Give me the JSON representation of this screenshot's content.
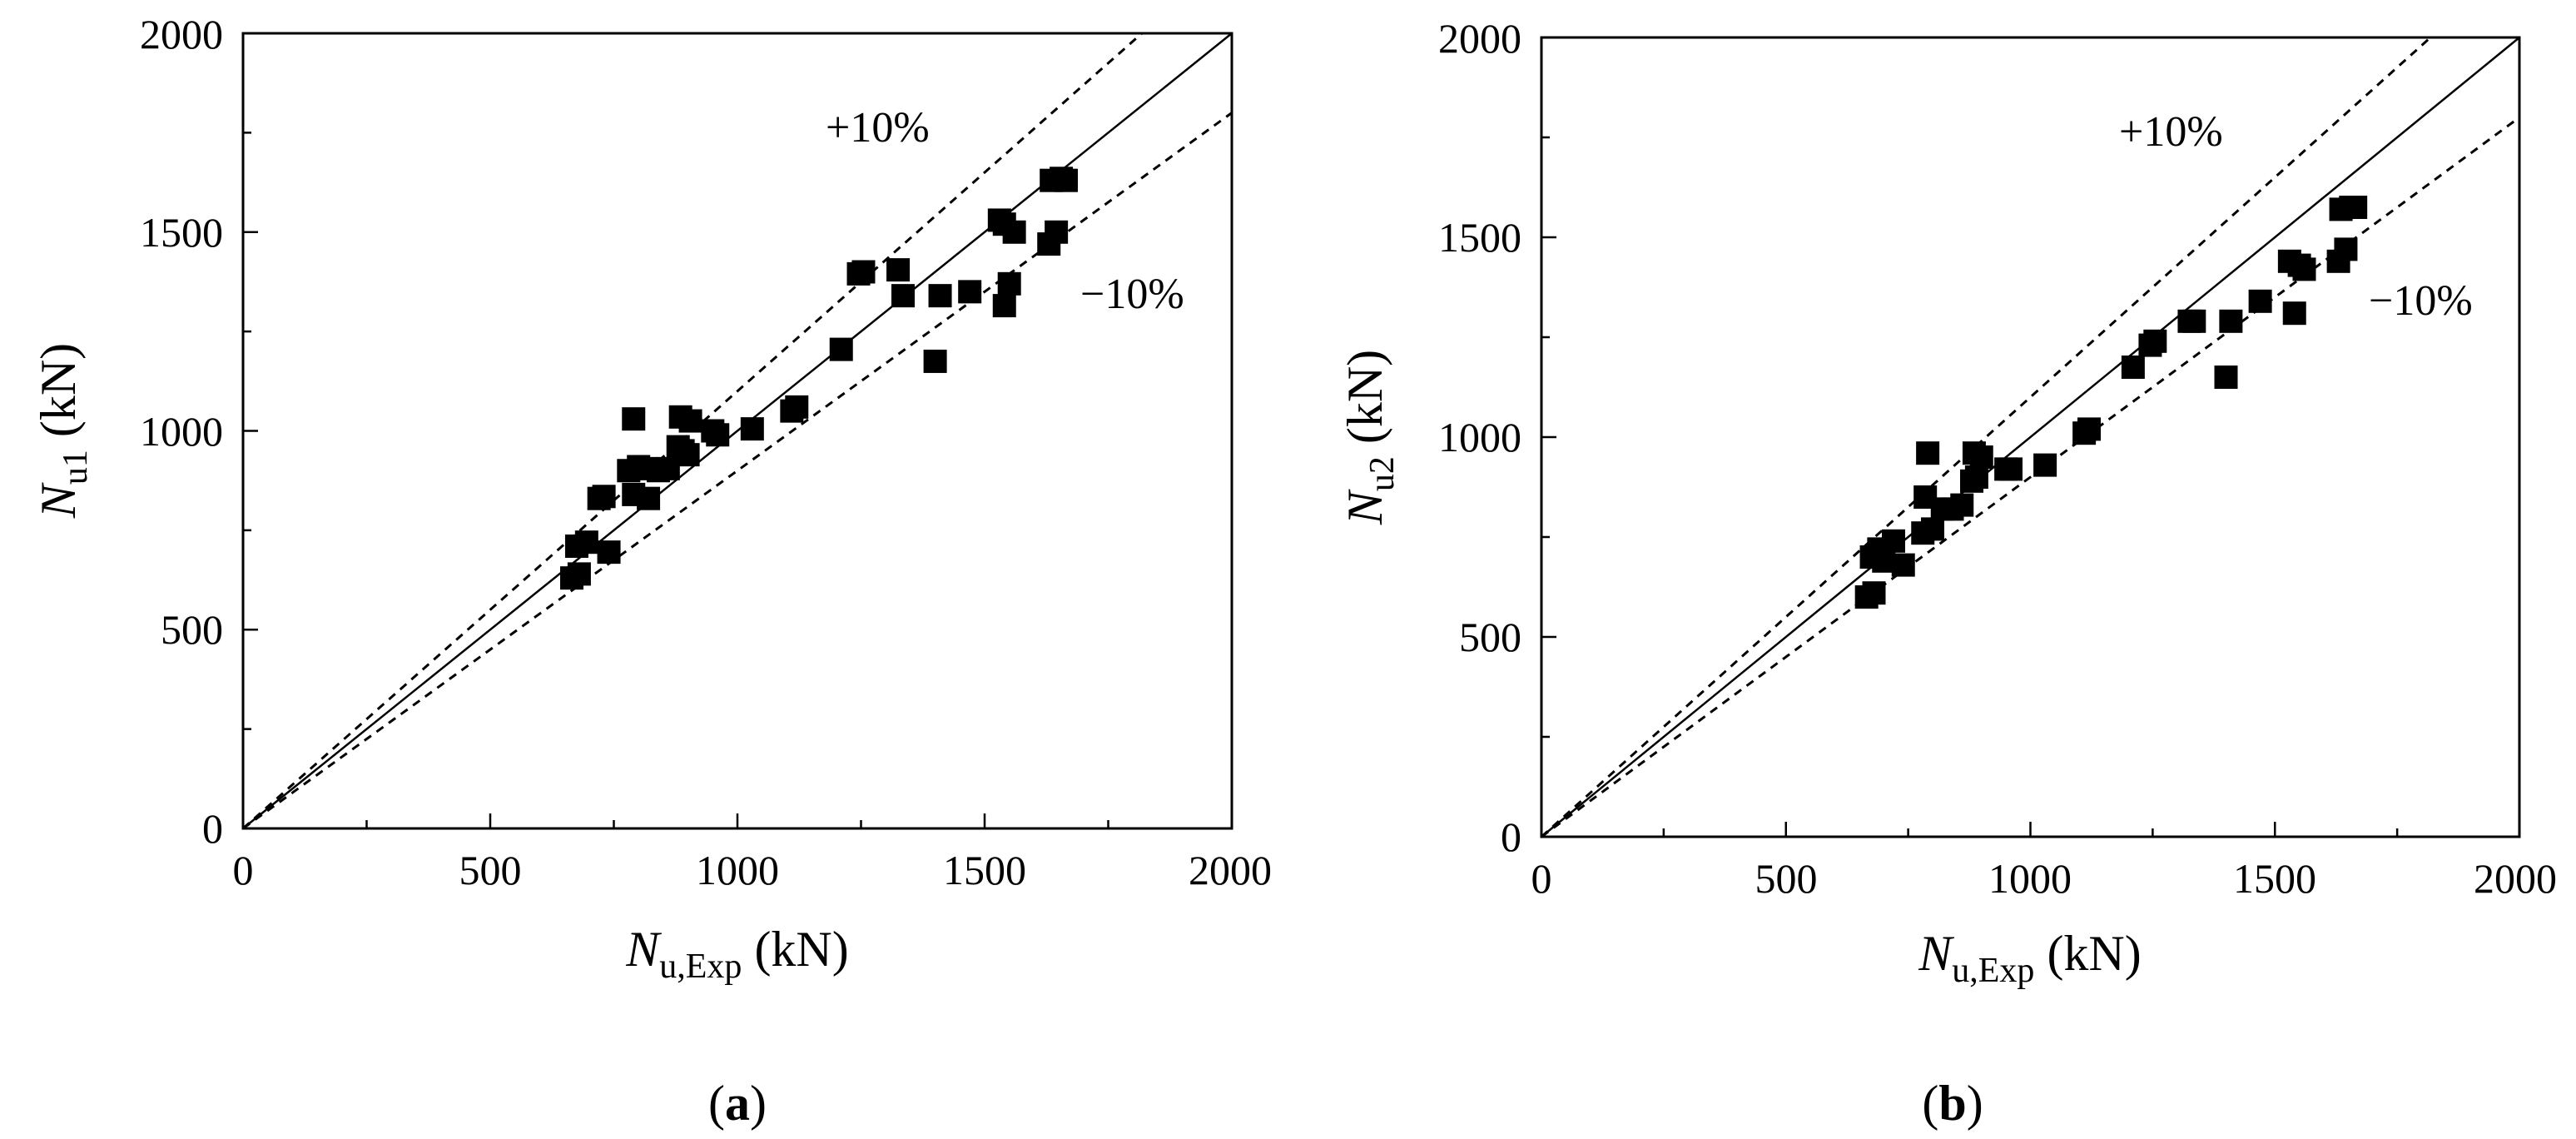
{
  "chart_data": [
    {
      "type": "scatter",
      "panel_label": "a",
      "xlabel": {
        "italic": "N",
        "sub": "u,Exp",
        "unit": " (kN)"
      },
      "ylabel": {
        "italic": "N",
        "sub": "u1",
        "unit": " (kN)"
      },
      "xlim": [
        0,
        2000
      ],
      "ylim": [
        0,
        2000
      ],
      "xticks": [
        "0",
        "500",
        "1000",
        "1500",
        "2000"
      ],
      "yticks": [
        "0",
        "500",
        "1000",
        "1500",
        "2000"
      ],
      "reference_lines": [
        {
          "name": "equality",
          "slope": 1.0,
          "style": "solid",
          "label": ""
        },
        {
          "name": "plus10",
          "slope": 1.1,
          "style": "dashed",
          "label": "+10%"
        },
        {
          "name": "minus10",
          "slope": 0.9,
          "style": "dashed",
          "label": "−10%"
        }
      ],
      "points": [
        [
          665,
          630
        ],
        [
          680,
          640
        ],
        [
          675,
          710
        ],
        [
          695,
          720
        ],
        [
          720,
          830
        ],
        [
          730,
          835
        ],
        [
          740,
          695
        ],
        [
          780,
          900
        ],
        [
          790,
          840
        ],
        [
          790,
          1030
        ],
        [
          800,
          910
        ],
        [
          815,
          905
        ],
        [
          820,
          830
        ],
        [
          840,
          900
        ],
        [
          860,
          905
        ],
        [
          880,
          960
        ],
        [
          885,
          1035
        ],
        [
          890,
          950
        ],
        [
          900,
          940
        ],
        [
          905,
          1025
        ],
        [
          950,
          1000
        ],
        [
          960,
          990
        ],
        [
          1030,
          1005
        ],
        [
          1110,
          1050
        ],
        [
          1120,
          1060
        ],
        [
          1210,
          1205
        ],
        [
          1245,
          1395
        ],
        [
          1255,
          1400
        ],
        [
          1325,
          1405
        ],
        [
          1335,
          1340
        ],
        [
          1400,
          1175
        ],
        [
          1410,
          1340
        ],
        [
          1470,
          1350
        ],
        [
          1530,
          1530
        ],
        [
          1540,
          1520
        ],
        [
          1540,
          1315
        ],
        [
          1550,
          1370
        ],
        [
          1560,
          1500
        ],
        [
          1630,
          1470
        ],
        [
          1635,
          1630
        ],
        [
          1645,
          1500
        ],
        [
          1655,
          1635
        ],
        [
          1665,
          1630
        ]
      ]
    },
    {
      "type": "scatter",
      "panel_label": "b",
      "xlabel": {
        "italic": "N",
        "sub": "u,Exp",
        "unit": " (kN)"
      },
      "ylabel": {
        "italic": "N",
        "sub": "u2",
        "unit": " (kN)"
      },
      "xlim": [
        0,
        2000
      ],
      "ylim": [
        0,
        2000
      ],
      "xticks": [
        "0",
        "500",
        "1000",
        "1500",
        "2000"
      ],
      "yticks": [
        "0",
        "500",
        "1000",
        "1500",
        "2000"
      ],
      "reference_lines": [
        {
          "name": "equality",
          "slope": 1.0,
          "style": "solid",
          "label": ""
        },
        {
          "name": "plus10",
          "slope": 1.1,
          "style": "dashed",
          "label": "+10%"
        },
        {
          "name": "minus10",
          "slope": 0.9,
          "style": "dashed",
          "label": "−10%"
        }
      ],
      "points": [
        [
          665,
          600
        ],
        [
          680,
          610
        ],
        [
          675,
          700
        ],
        [
          690,
          720
        ],
        [
          700,
          690
        ],
        [
          720,
          740
        ],
        [
          740,
          680
        ],
        [
          780,
          760
        ],
        [
          785,
          850
        ],
        [
          790,
          960
        ],
        [
          800,
          770
        ],
        [
          820,
          820
        ],
        [
          840,
          820
        ],
        [
          860,
          830
        ],
        [
          880,
          890
        ],
        [
          885,
          960
        ],
        [
          890,
          900
        ],
        [
          900,
          950
        ],
        [
          950,
          920
        ],
        [
          960,
          920
        ],
        [
          1030,
          930
        ],
        [
          1110,
          1010
        ],
        [
          1120,
          1020
        ],
        [
          1210,
          1175
        ],
        [
          1245,
          1230
        ],
        [
          1255,
          1240
        ],
        [
          1325,
          1290
        ],
        [
          1335,
          1290
        ],
        [
          1400,
          1150
        ],
        [
          1410,
          1290
        ],
        [
          1470,
          1340
        ],
        [
          1530,
          1440
        ],
        [
          1540,
          1310
        ],
        [
          1550,
          1430
        ],
        [
          1560,
          1420
        ],
        [
          1630,
          1440
        ],
        [
          1635,
          1570
        ],
        [
          1645,
          1470
        ],
        [
          1655,
          1575
        ],
        [
          1665,
          1575
        ]
      ]
    }
  ]
}
